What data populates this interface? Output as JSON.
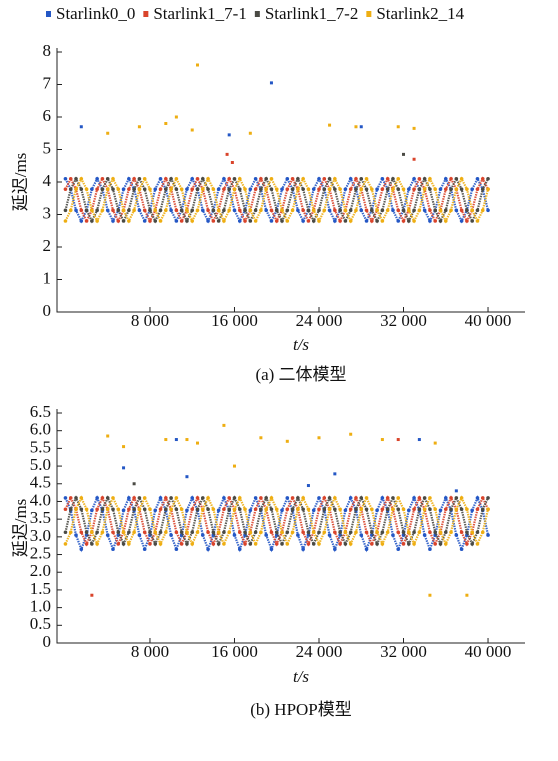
{
  "chart_data": [
    {
      "type": "scatter",
      "title": "(a) 二体模型",
      "xlabel": "t/s",
      "ylabel": "延迟/ms",
      "xlim": [
        -800,
        43500
      ],
      "ylim": [
        0,
        8
      ],
      "xticks": [
        {
          "value": 8000,
          "label": "8 000"
        },
        {
          "value": 16000,
          "label": "16 000"
        },
        {
          "value": 24000,
          "label": "24 000"
        },
        {
          "value": 32000,
          "label": "32 000"
        },
        {
          "value": 40000,
          "label": "40 000"
        }
      ],
      "yticks": [
        0,
        1,
        2,
        3,
        4,
        5,
        6,
        7,
        8
      ],
      "x": [
        0,
        500,
        1000,
        1500,
        2000,
        2500,
        3000,
        3500,
        4000,
        4500,
        5000,
        5500,
        6000,
        6500,
        7000,
        7500,
        8000,
        8500,
        9000,
        9500,
        10000,
        10500,
        11000,
        11500,
        12000,
        12500,
        13000,
        13500,
        14000,
        14500,
        15000,
        15500,
        16000,
        16500,
        17000,
        17500,
        18000,
        18500,
        19000,
        19500,
        20000,
        20500,
        21000,
        21500,
        22000,
        22500,
        23000,
        23500,
        24000,
        24500,
        25000,
        25500,
        26000,
        26500,
        27000,
        27500,
        28000,
        28500,
        29000,
        29500,
        30000,
        30500,
        31000,
        31500,
        32000,
        32500,
        33000,
        33500,
        34000,
        34500,
        35000,
        35500,
        36000,
        36500,
        37000,
        37500,
        38000,
        38500,
        39000,
        39500,
        40000
      ],
      "series": [
        {
          "name": "Starlink0_0",
          "color": "#2457c5",
          "values": [
            4.1,
            3.78,
            3.13,
            2.8,
            3.13,
            3.78,
            4.1,
            3.78,
            3.13,
            2.8,
            3.13,
            3.78,
            4.1,
            3.78,
            3.13,
            2.8,
            3.13,
            3.78,
            4.1,
            3.78,
            3.13,
            2.8,
            3.13,
            3.78,
            4.1,
            3.78,
            3.13,
            2.8,
            3.13,
            3.78,
            4.1,
            3.78,
            3.13,
            2.8,
            3.13,
            3.78,
            4.1,
            3.78,
            3.13,
            2.8,
            3.13,
            3.78,
            4.1,
            3.78,
            3.13,
            2.8,
            3.13,
            3.78,
            4.1,
            3.78,
            3.13,
            2.8,
            3.13,
            3.78,
            4.1,
            3.78,
            3.13,
            2.8,
            3.13,
            3.78,
            4.1,
            3.78,
            3.13,
            2.8,
            3.13,
            3.78,
            4.1,
            3.78,
            3.13,
            2.8,
            3.13,
            3.78,
            4.1,
            3.78,
            3.13,
            2.8,
            3.13,
            3.78,
            4.1,
            3.78,
            3.13
          ],
          "extra_points": {
            "x": [
              1500,
              15500,
              19500,
              28000
            ],
            "values": [
              5.7,
              5.45,
              7.05,
              5.7
            ]
          }
        },
        {
          "name": "Starlink1_7-1",
          "color": "#d9442b",
          "values": [
            3.78,
            4.1,
            3.78,
            3.13,
            2.8,
            3.13,
            3.78,
            4.1,
            3.78,
            3.13,
            2.8,
            3.13,
            3.78,
            4.1,
            3.78,
            3.13,
            2.8,
            3.13,
            3.78,
            4.1,
            3.78,
            3.13,
            2.8,
            3.13,
            3.78,
            4.1,
            3.78,
            3.13,
            2.8,
            3.13,
            3.78,
            4.1,
            3.78,
            3.13,
            2.8,
            3.13,
            3.78,
            4.1,
            3.78,
            3.13,
            2.8,
            3.13,
            3.78,
            4.1,
            3.78,
            3.13,
            2.8,
            3.13,
            3.78,
            4.1,
            3.78,
            3.13,
            2.8,
            3.13,
            3.78,
            4.1,
            3.78,
            3.13,
            2.8,
            3.13,
            3.78,
            4.1,
            3.78,
            3.13,
            2.8,
            3.13,
            3.78,
            4.1,
            3.78,
            3.13,
            2.8,
            3.13,
            3.78,
            4.1,
            3.78,
            3.13,
            2.8,
            3.13,
            3.78,
            4.1,
            3.78
          ],
          "extra_points": {
            "x": [
              15300,
              15800,
              33000
            ],
            "values": [
              4.85,
              4.6,
              4.7
            ]
          }
        },
        {
          "name": "Starlink1_7-2",
          "color": "#4a4a44",
          "values": [
            3.13,
            3.78,
            4.1,
            3.78,
            3.13,
            2.8,
            3.13,
            3.78,
            4.1,
            3.78,
            3.13,
            2.8,
            3.13,
            3.78,
            4.1,
            3.78,
            3.13,
            2.8,
            3.13,
            3.78,
            4.1,
            3.78,
            3.13,
            2.8,
            3.13,
            3.78,
            4.1,
            3.78,
            3.13,
            2.8,
            3.13,
            3.78,
            4.1,
            3.78,
            3.13,
            2.8,
            3.13,
            3.78,
            4.1,
            3.78,
            3.13,
            2.8,
            3.13,
            3.78,
            4.1,
            3.78,
            3.13,
            2.8,
            3.13,
            3.78,
            4.1,
            3.78,
            3.13,
            2.8,
            3.13,
            3.78,
            4.1,
            3.78,
            3.13,
            2.8,
            3.13,
            3.78,
            4.1,
            3.78,
            3.13,
            2.8,
            3.13,
            3.78,
            4.1,
            3.78,
            3.13,
            2.8,
            3.13,
            3.78,
            4.1,
            3.78,
            3.13,
            2.8,
            3.13,
            3.78,
            4.1
          ],
          "extra_points": {
            "x": [
              32000
            ],
            "values": [
              4.85
            ]
          }
        },
        {
          "name": "Starlink2_14",
          "color": "#eeae12",
          "values": [
            2.8,
            3.13,
            3.78,
            4.1,
            3.78,
            3.13,
            2.8,
            3.13,
            3.78,
            4.1,
            3.78,
            3.13,
            2.8,
            3.13,
            3.78,
            4.1,
            3.78,
            3.13,
            2.8,
            3.13,
            3.78,
            4.1,
            3.78,
            3.13,
            2.8,
            3.13,
            3.78,
            4.1,
            3.78,
            3.13,
            2.8,
            3.13,
            3.78,
            4.1,
            3.78,
            3.13,
            2.8,
            3.13,
            3.78,
            4.1,
            3.78,
            3.13,
            2.8,
            3.13,
            3.78,
            4.1,
            3.78,
            3.13,
            2.8,
            3.13,
            3.78,
            4.1,
            3.78,
            3.13,
            2.8,
            3.13,
            3.78,
            4.1,
            3.78,
            3.13,
            2.8,
            3.13,
            3.78,
            4.1,
            3.78,
            3.13,
            2.8,
            3.13,
            3.78,
            4.1,
            3.78,
            3.13,
            2.8,
            3.13,
            3.78,
            4.1,
            3.78,
            3.13,
            2.8,
            3.13,
            3.78
          ],
          "extra_points": {
            "x": [
              4000,
              7000,
              9500,
              10500,
              12000,
              12500,
              17500,
              25000,
              27500,
              31500,
              33000
            ],
            "values": [
              5.5,
              5.7,
              5.8,
              6.0,
              5.6,
              7.6,
              5.5,
              5.75,
              5.7,
              5.7,
              5.65
            ]
          }
        }
      ]
    },
    {
      "type": "scatter",
      "title": "(b) HPOP模型",
      "xlabel": "t/s",
      "ylabel": "延迟/ms",
      "xlim": [
        -800,
        43500
      ],
      "ylim": [
        0,
        6.5
      ],
      "xticks": [
        {
          "value": 8000,
          "label": "8 000"
        },
        {
          "value": 16000,
          "label": "16 000"
        },
        {
          "value": 24000,
          "label": "24 000"
        },
        {
          "value": 32000,
          "label": "32 000"
        },
        {
          "value": 40000,
          "label": "40 000"
        }
      ],
      "yticks": [
        0,
        0.5,
        {
          "value": 1,
          "label": "1.0"
        },
        1.5,
        {
          "value": 2,
          "label": "2.0"
        },
        2.5,
        {
          "value": 3,
          "label": "3.0"
        },
        3.5,
        {
          "value": 4,
          "label": "4.0"
        },
        4.5,
        {
          "value": 5,
          "label": "5.0"
        },
        5.5,
        {
          "value": 6,
          "label": "6.0"
        },
        6.5
      ],
      "x": [
        0,
        500,
        1000,
        1500,
        2000,
        2500,
        3000,
        3500,
        4000,
        4500,
        5000,
        5500,
        6000,
        6500,
        7000,
        7500,
        8000,
        8500,
        9000,
        9500,
        10000,
        10500,
        11000,
        11500,
        12000,
        12500,
        13000,
        13500,
        14000,
        14500,
        15000,
        15500,
        16000,
        16500,
        17000,
        17500,
        18000,
        18500,
        19000,
        19500,
        20000,
        20500,
        21000,
        21500,
        22000,
        22500,
        23000,
        23500,
        24000,
        24500,
        25000,
        25500,
        26000,
        26500,
        27000,
        27500,
        28000,
        28500,
        29000,
        29500,
        30000,
        30500,
        31000,
        31500,
        32000,
        32500,
        33000,
        33500,
        34000,
        34500,
        35000,
        35500,
        36000,
        36500,
        37000,
        37500,
        38000,
        38500,
        39000,
        39500,
        40000
      ],
      "series": [
        {
          "color": "#2457c5",
          "values": [
            4.1,
            3.75,
            3.05,
            2.65,
            3.05,
            3.75,
            4.1,
            3.75,
            3.05,
            2.65,
            3.05,
            3.75,
            4.1,
            3.75,
            3.05,
            2.65,
            3.05,
            3.75,
            4.1,
            3.75,
            3.05,
            2.65,
            3.05,
            3.75,
            4.1,
            3.75,
            3.05,
            2.65,
            3.05,
            3.75,
            4.1,
            3.75,
            3.05,
            2.65,
            3.05,
            3.75,
            4.1,
            3.75,
            3.05,
            2.65,
            3.05,
            3.75,
            4.1,
            3.75,
            3.05,
            2.65,
            3.05,
            3.75,
            4.1,
            3.75,
            3.05,
            2.65,
            3.05,
            3.75,
            4.1,
            3.75,
            3.05,
            2.65,
            3.05,
            3.75,
            4.1,
            3.75,
            3.05,
            2.65,
            3.05,
            3.75,
            4.1,
            3.75,
            3.05,
            2.65,
            3.05,
            3.75,
            4.1,
            3.75,
            3.05,
            2.65,
            3.05,
            3.75,
            4.1,
            3.75,
            3.05
          ],
          "extra_points": {
            "x": [
              5500,
              10500,
              11500,
              23000,
              25500,
              33500,
              37000
            ],
            "values": [
              4.95,
              5.75,
              4.7,
              4.45,
              4.78,
              5.75,
              4.3
            ]
          }
        },
        {
          "color": "#d9442b",
          "values": [
            3.78,
            4.1,
            3.78,
            3.13,
            2.8,
            3.13,
            3.78,
            4.1,
            3.78,
            3.13,
            2.8,
            3.13,
            3.78,
            4.1,
            3.78,
            3.13,
            2.8,
            3.13,
            3.78,
            4.1,
            3.78,
            3.13,
            2.8,
            3.13,
            3.78,
            4.1,
            3.78,
            3.13,
            2.8,
            3.13,
            3.78,
            4.1,
            3.78,
            3.13,
            2.8,
            3.13,
            3.78,
            4.1,
            3.78,
            3.13,
            2.8,
            3.13,
            3.78,
            4.1,
            3.78,
            3.13,
            2.8,
            3.13,
            3.78,
            4.1,
            3.78,
            3.13,
            2.8,
            3.13,
            3.78,
            4.1,
            3.78,
            3.13,
            2.8,
            3.13,
            3.78,
            4.1,
            3.78,
            3.13,
            2.8,
            3.13,
            3.78,
            4.1,
            3.78,
            3.13,
            2.8,
            3.13,
            3.78,
            4.1,
            3.78,
            3.13,
            2.8,
            3.13,
            3.78,
            4.1,
            3.78
          ],
          "extra_points": {
            "x": [
              2500,
              31500
            ],
            "values": [
              1.35,
              5.75
            ]
          }
        },
        {
          "color": "#4a4a44",
          "values": [
            3.13,
            3.78,
            4.1,
            3.78,
            3.13,
            2.8,
            3.13,
            3.78,
            4.1,
            3.78,
            3.13,
            2.8,
            3.13,
            3.78,
            4.1,
            3.78,
            3.13,
            2.8,
            3.13,
            3.78,
            4.1,
            3.78,
            3.13,
            2.8,
            3.13,
            3.78,
            4.1,
            3.78,
            3.13,
            2.8,
            3.13,
            3.78,
            4.1,
            3.78,
            3.13,
            2.8,
            3.13,
            3.78,
            4.1,
            3.78,
            3.13,
            2.8,
            3.13,
            3.78,
            4.1,
            3.78,
            3.13,
            2.8,
            3.13,
            3.78,
            4.1,
            3.78,
            3.13,
            2.8,
            3.13,
            3.78,
            4.1,
            3.78,
            3.13,
            2.8,
            3.13,
            3.78,
            4.1,
            3.78,
            3.13,
            2.8,
            3.13,
            3.78,
            4.1,
            3.78,
            3.13,
            2.8,
            3.13,
            3.78,
            4.1,
            3.78,
            3.13,
            2.8,
            3.13,
            3.78,
            4.1
          ],
          "extra_points": {
            "x": [
              6500
            ],
            "values": [
              4.5
            ]
          }
        },
        {
          "color": "#eeae12",
          "values": [
            2.8,
            3.13,
            3.78,
            4.1,
            3.78,
            3.13,
            2.8,
            3.13,
            3.78,
            4.1,
            3.78,
            3.13,
            2.8,
            3.13,
            3.78,
            4.1,
            3.78,
            3.13,
            2.8,
            3.13,
            3.78,
            4.1,
            3.78,
            3.13,
            2.8,
            3.13,
            3.78,
            4.1,
            3.78,
            3.13,
            2.8,
            3.13,
            3.78,
            4.1,
            3.78,
            3.13,
            2.8,
            3.13,
            3.78,
            4.1,
            3.78,
            3.13,
            2.8,
            3.13,
            3.78,
            4.1,
            3.78,
            3.13,
            2.8,
            3.13,
            3.78,
            4.1,
            3.78,
            3.13,
            2.8,
            3.13,
            3.78,
            4.1,
            3.78,
            3.13,
            2.8,
            3.13,
            3.78,
            4.1,
            3.78,
            3.13,
            2.8,
            3.13,
            3.78,
            4.1,
            3.78,
            3.13,
            2.8,
            3.13,
            3.78,
            4.1,
            3.78,
            3.13,
            2.8,
            3.13,
            3.78
          ],
          "extra_points": {
            "x": [
              4000,
              5500,
              9500,
              11500,
              12500,
              15000,
              16000,
              18500,
              21000,
              24000,
              27000,
              30000,
              34500,
              35000,
              38000
            ],
            "values": [
              5.85,
              5.55,
              5.75,
              5.75,
              5.65,
              6.15,
              5.0,
              5.8,
              5.7,
              5.8,
              5.9,
              5.75,
              1.35,
              5.65,
              1.35
            ]
          }
        }
      ]
    }
  ]
}
